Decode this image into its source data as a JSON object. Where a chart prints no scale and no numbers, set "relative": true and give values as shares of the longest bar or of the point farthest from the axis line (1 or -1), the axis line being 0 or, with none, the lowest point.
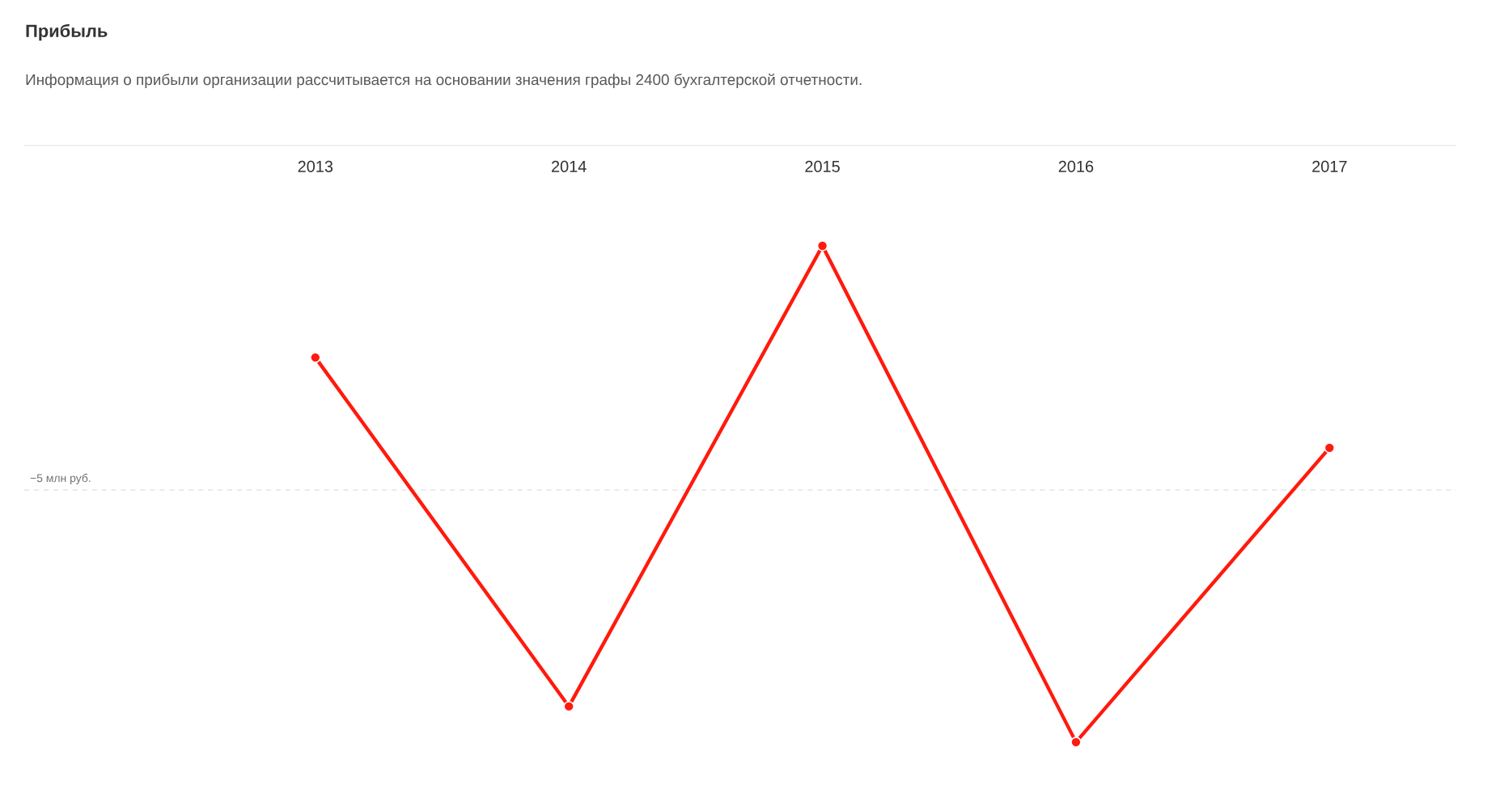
{
  "chart_data": {
    "type": "line",
    "title": "Прибыль",
    "subtitle": "Информация о прибыли организации рассчитывается на основании значения графы 2400 бухгалтерской отчетности.",
    "categories": [
      "2013",
      "2014",
      "2015",
      "2016",
      "2017"
    ],
    "series": [
      {
        "color": "#ff1a0d",
        "values": [
          0.775,
          0.072,
          1,
          0,
          0.593
        ]
      }
    ],
    "relative": true,
    "marker": "circle",
    "line_style": "solid",
    "grid": false,
    "ref_lines": [
      {
        "axis": "y",
        "value": 0.508,
        "label": "−5 млн руб.",
        "color": "#cccccc",
        "line_style": "dashed"
      }
    ]
  }
}
